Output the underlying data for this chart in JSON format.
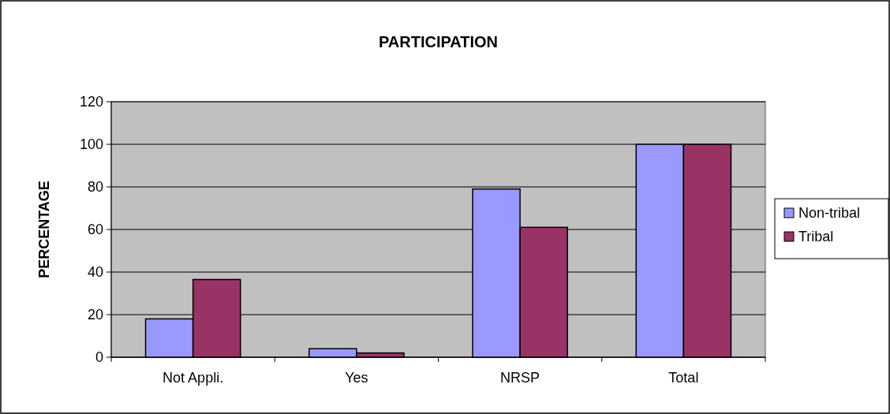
{
  "chart_data": {
    "type": "bar",
    "title": "PARTICIPATION",
    "ylabel": "PERCENTAGE",
    "categories": [
      "Not Appli.",
      "Yes",
      "NRSP",
      "Total"
    ],
    "series": [
      {
        "name": "Non-tribal",
        "color": "#9999ff",
        "values": [
          18,
          4,
          79,
          100
        ]
      },
      {
        "name": "Tribal",
        "color": "#993366",
        "values": [
          36.5,
          2,
          61,
          100
        ]
      }
    ],
    "ylim": [
      0,
      120
    ],
    "yticks": [
      0,
      20,
      40,
      60,
      80,
      100,
      120
    ],
    "grid": "y",
    "legend": "right"
  }
}
